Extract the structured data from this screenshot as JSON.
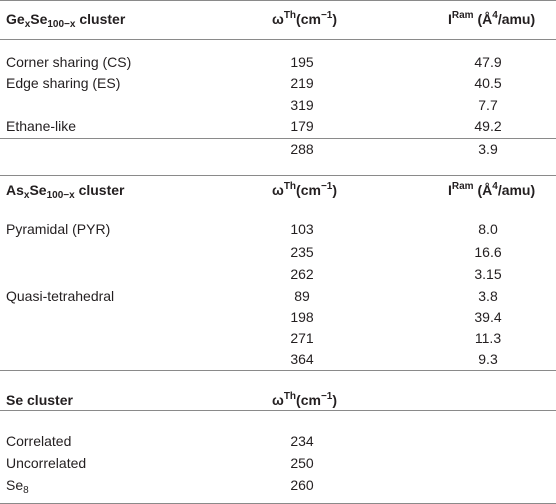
{
  "col_omega": "ω",
  "col_omega_sup": "Th",
  "col_omega_unit": "(cm",
  "col_omega_exp": "−1",
  "col_omega_close": ")",
  "col_intensity": "I",
  "col_intensity_sup": "Ram",
  "col_intensity_unit": "(Å",
  "col_intensity_exp": "4",
  "col_intensity_rest": "/amu)",
  "sections": [
    {
      "title_a": "Ge",
      "title_sub1": "x",
      "title_b": "Se",
      "title_sub2": "100−x",
      "title_c": " cluster",
      "rows": [
        {
          "label": "Corner sharing (CS)",
          "omega": "195",
          "intensity": "47.9"
        },
        {
          "label": "Edge sharing (ES)",
          "omega": "219",
          "intensity": "40.5"
        },
        {
          "label": "",
          "omega": "319",
          "intensity": "7.7"
        },
        {
          "label": "Ethane-like",
          "omega": "179",
          "intensity": "49.2"
        },
        {
          "label": "",
          "omega": "288",
          "intensity": "3.9"
        }
      ]
    },
    {
      "title_a": "As",
      "title_sub1": "x",
      "title_b": "Se",
      "title_sub2": "100−x",
      "title_c": " cluster",
      "rows": [
        {
          "label": "Pyramidal (PYR)",
          "omega": "103",
          "intensity": "8.0"
        },
        {
          "label": "",
          "omega": "235",
          "intensity": "16.6"
        },
        {
          "label": "",
          "omega": "262",
          "intensity": "3.15"
        },
        {
          "label": "Quasi-tetrahedral",
          "omega": "89",
          "intensity": "3.8"
        },
        {
          "label": "",
          "omega": "198",
          "intensity": "39.4"
        },
        {
          "label": "",
          "omega": "271",
          "intensity": "11.3"
        },
        {
          "label": "",
          "omega": "364",
          "intensity": "9.3"
        }
      ]
    },
    {
      "title_a": "Se cluster",
      "rows": [
        {
          "label": "Correlated",
          "omega": "234"
        },
        {
          "label": "Uncorrelated",
          "omega": "250"
        },
        {
          "label": "Se",
          "label_sub": "8",
          "omega": "260"
        }
      ]
    }
  ]
}
